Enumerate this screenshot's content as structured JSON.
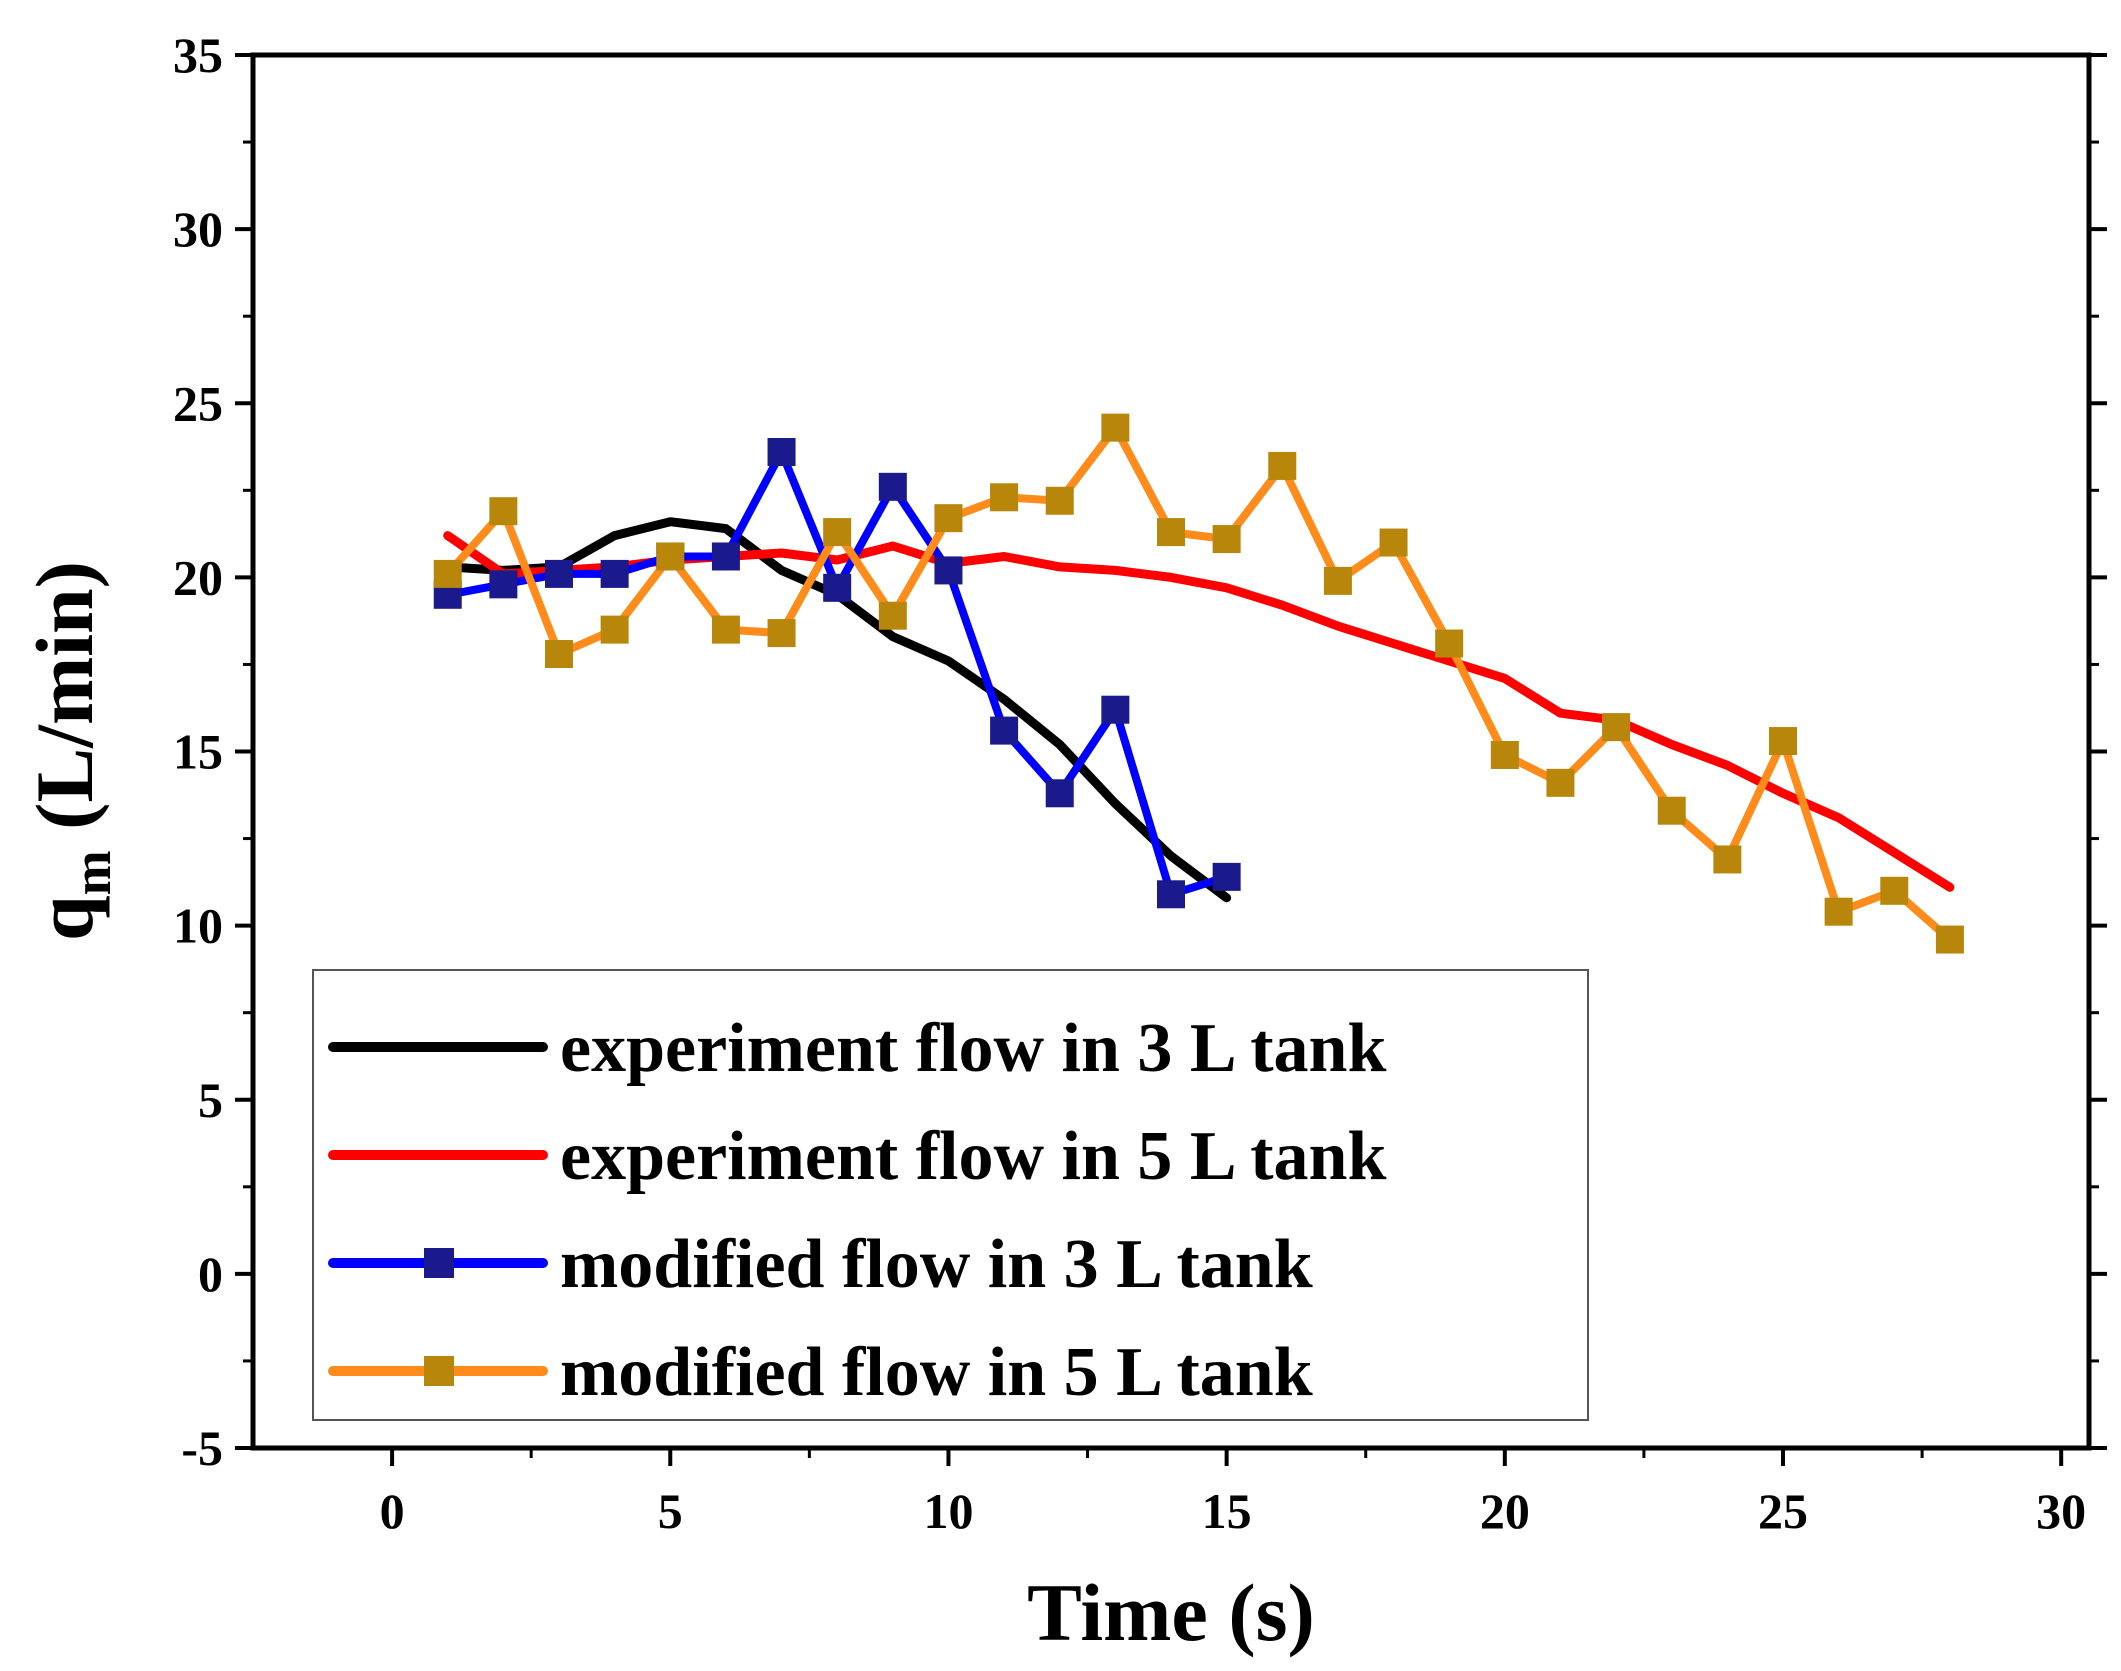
{
  "chart_data": {
    "type": "line",
    "xlabel": "Time (s)",
    "ylabel": {
      "main": "q",
      "sub": "m",
      "unit": " (L/min)"
    },
    "xlim": [
      -2.5,
      30.5
    ],
    "ylim": [
      -5,
      35
    ],
    "xticks": [
      0,
      5,
      10,
      15,
      20,
      25,
      30
    ],
    "yticks": [
      -5,
      0,
      5,
      10,
      15,
      20,
      25,
      30,
      35
    ],
    "xtick_labels": [
      "0",
      "5",
      "10",
      "15",
      "20",
      "25",
      "30"
    ],
    "ytick_labels": [
      "-5",
      "0",
      "5",
      "10",
      "15",
      "20",
      "25",
      "30",
      "35"
    ],
    "legend_position": "lower-left",
    "series": [
      {
        "name": "experiment flow in 3 L tank",
        "color": "#000000",
        "marker": "none",
        "x": [
          1,
          2,
          3,
          4,
          5,
          6,
          7,
          8,
          9,
          10,
          11,
          12,
          13,
          14,
          15
        ],
        "y": [
          20.3,
          20.2,
          20.3,
          21.2,
          21.6,
          21.4,
          20.2,
          19.5,
          18.3,
          17.6,
          16.5,
          15.2,
          13.5,
          12.0,
          10.8
        ]
      },
      {
        "name": "experiment flow in 5 L tank",
        "color": "#ff0000",
        "marker": "none",
        "x": [
          1,
          2,
          3,
          4,
          5,
          6,
          7,
          8,
          9,
          10,
          11,
          12,
          13,
          14,
          15,
          16,
          17,
          18,
          19,
          20,
          21,
          22,
          23,
          24,
          25,
          26,
          27,
          28
        ],
        "y": [
          21.2,
          20.1,
          20.2,
          20.3,
          20.5,
          20.6,
          20.7,
          20.5,
          20.9,
          20.4,
          20.6,
          20.3,
          20.2,
          20.0,
          19.7,
          19.2,
          18.6,
          18.1,
          17.6,
          17.1,
          16.1,
          15.9,
          15.2,
          14.6,
          13.8,
          13.1,
          12.1,
          11.1
        ]
      },
      {
        "name": "modified flow in 3 L tank",
        "color": "#0000ff",
        "marker": "square",
        "marker_color": "#1a1a8c",
        "x": [
          1,
          2,
          3,
          4,
          5,
          6,
          7,
          8,
          9,
          10,
          11,
          12,
          13,
          14,
          15
        ],
        "y": [
          19.5,
          19.8,
          20.1,
          20.1,
          20.6,
          20.6,
          23.6,
          19.7,
          22.6,
          20.2,
          15.6,
          13.8,
          16.2,
          10.9,
          11.4
        ]
      },
      {
        "name": "modified flow in 5 L tank",
        "color": "#ff8c1a",
        "marker": "square",
        "marker_color": "#b8860b",
        "x": [
          1,
          2,
          3,
          4,
          5,
          6,
          7,
          8,
          9,
          10,
          11,
          12,
          13,
          14,
          15,
          16,
          17,
          18,
          19,
          20,
          21,
          22,
          23,
          24,
          25,
          26,
          27,
          28
        ],
        "y": [
          20.1,
          21.9,
          17.8,
          18.5,
          20.6,
          18.5,
          18.4,
          21.3,
          18.9,
          21.7,
          22.3,
          22.2,
          24.3,
          21.3,
          21.1,
          23.2,
          19.9,
          21.0,
          18.1,
          14.9,
          14.1,
          15.7,
          13.3,
          11.9,
          15.3,
          10.4,
          11.0,
          9.6
        ]
      }
    ]
  }
}
